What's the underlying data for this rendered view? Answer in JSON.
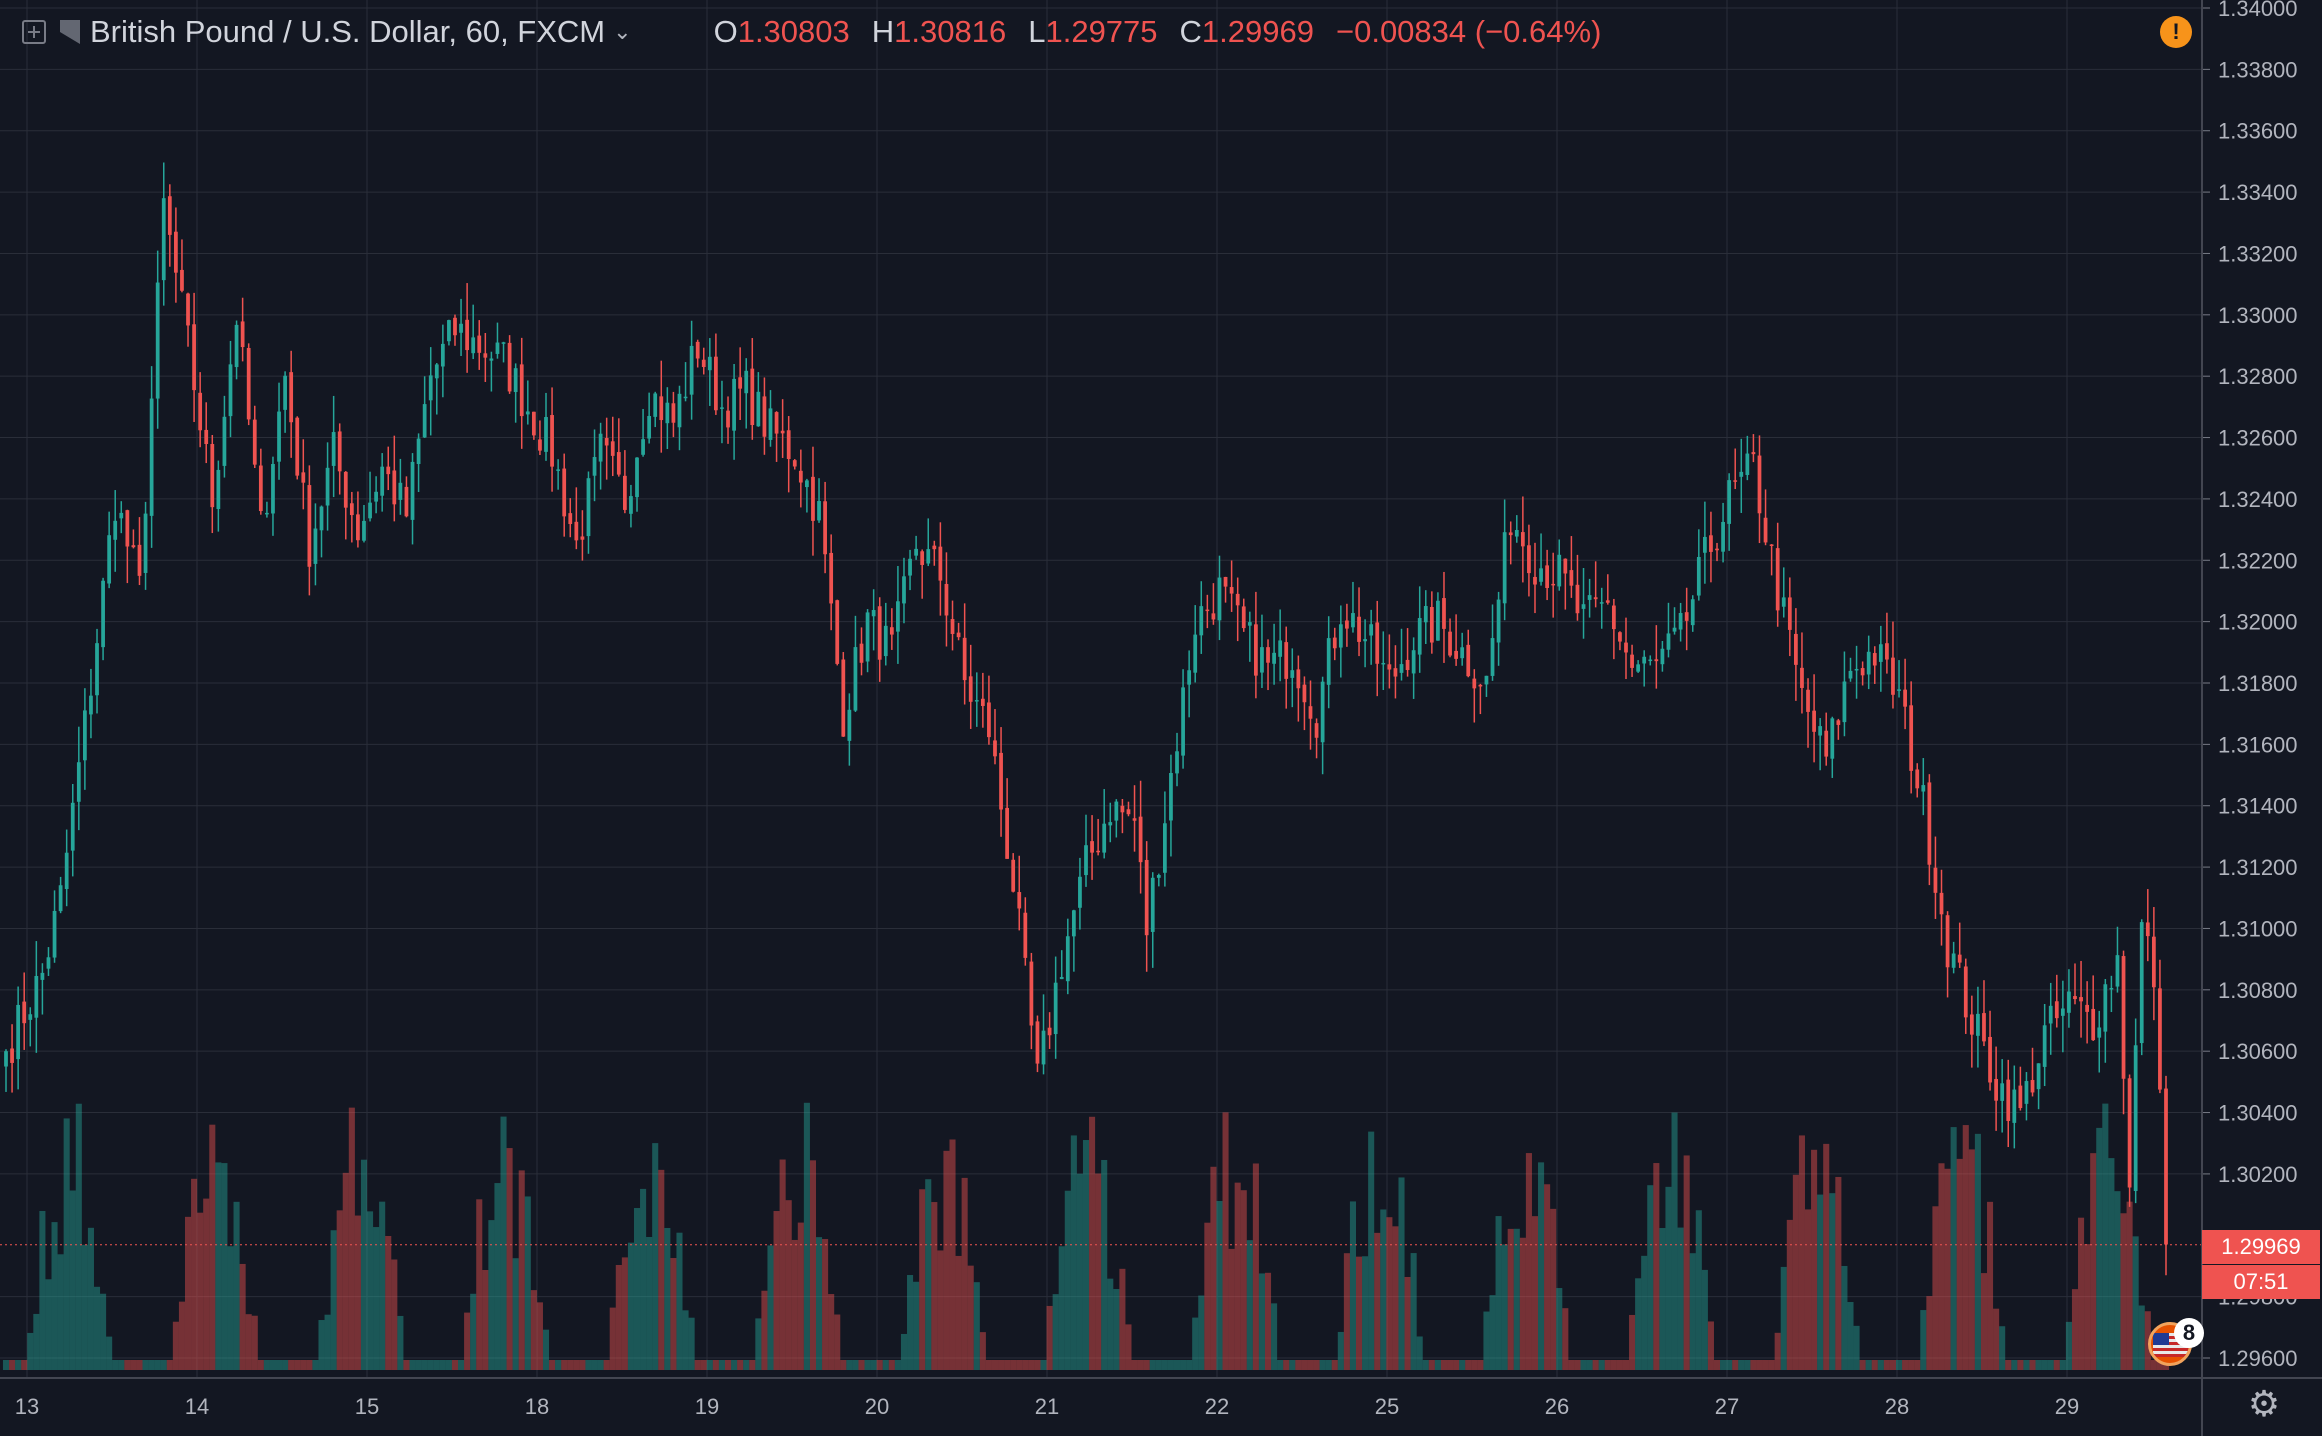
{
  "header": {
    "symbol": "British Pound / U.S. Dollar, 60, FXCM",
    "o_label": "O",
    "o_value": "1.30803",
    "h_label": "H",
    "h_value": "1.30816",
    "l_label": "L",
    "l_value": "1.29775",
    "c_label": "C",
    "c_value": "1.29969",
    "change": "−0.00834 (−0.64%)"
  },
  "alert_icon_text": "!",
  "price_label": "1.29969",
  "countdown": "07:51",
  "events_badge": "8",
  "colors": {
    "up": "#26a69a",
    "down": "#ef5350",
    "background": "#131722",
    "grid": "#2a2e39",
    "text": "#b2b5be"
  },
  "icons": [
    "add-icon",
    "flag-icon",
    "chevron-down-icon",
    "alert-icon",
    "us-flag-icon",
    "gear-icon"
  ],
  "chart_data": {
    "type": "candlestick",
    "title": "British Pound / U.S. Dollar, 60, FXCM",
    "xlabel": "",
    "ylabel": "",
    "ylim": [
      1.2955,
      1.34
    ],
    "y_ticks": [
      "1.34000",
      "1.33800",
      "1.33600",
      "1.33400",
      "1.33200",
      "1.33000",
      "1.32800",
      "1.32600",
      "1.32400",
      "1.32200",
      "1.32000",
      "1.31800",
      "1.31600",
      "1.31400",
      "1.31200",
      "1.31000",
      "1.30800",
      "1.30600",
      "1.30400",
      "1.30200",
      "1.29800",
      "1.29600"
    ],
    "x_ticks": [
      "13",
      "14",
      "15",
      "18",
      "19",
      "20",
      "21",
      "22",
      "25",
      "26",
      "27",
      "28",
      "29"
    ],
    "grid": true,
    "last_price": 1.29969,
    "anchors": [
      [
        0,
        1.306
      ],
      [
        6,
        1.3085
      ],
      [
        9,
        1.311
      ],
      [
        14,
        1.318
      ],
      [
        18,
        1.324
      ],
      [
        22,
        1.321
      ],
      [
        26,
        1.3335
      ],
      [
        30,
        1.329
      ],
      [
        34,
        1.324
      ],
      [
        38,
        1.33
      ],
      [
        42,
        1.323
      ],
      [
        46,
        1.328
      ],
      [
        50,
        1.3225
      ],
      [
        54,
        1.3255
      ],
      [
        58,
        1.323
      ],
      [
        62,
        1.325
      ],
      [
        66,
        1.3235
      ],
      [
        70,
        1.328
      ],
      [
        74,
        1.3295
      ],
      [
        78,
        1.329
      ],
      [
        82,
        1.3285
      ],
      [
        86,
        1.327
      ],
      [
        90,
        1.3255
      ],
      [
        94,
        1.3225
      ],
      [
        98,
        1.3255
      ],
      [
        102,
        1.324
      ],
      [
        106,
        1.3275
      ],
      [
        110,
        1.3265
      ],
      [
        114,
        1.329
      ],
      [
        118,
        1.327
      ],
      [
        122,
        1.3275
      ],
      [
        126,
        1.3262
      ],
      [
        130,
        1.3255
      ],
      [
        134,
        1.3235
      ],
      [
        138,
        1.317
      ],
      [
        142,
        1.32
      ],
      [
        146,
        1.319
      ],
      [
        150,
        1.3225
      ],
      [
        154,
        1.3215
      ],
      [
        158,
        1.318
      ],
      [
        162,
        1.3165
      ],
      [
        166,
        1.3115
      ],
      [
        170,
        1.305
      ],
      [
        174,
        1.309
      ],
      [
        178,
        1.312
      ],
      [
        182,
        1.314
      ],
      [
        186,
        1.3135
      ],
      [
        188,
        1.31
      ],
      [
        192,
        1.315
      ],
      [
        196,
        1.32
      ],
      [
        200,
        1.321
      ],
      [
        204,
        1.3195
      ],
      [
        208,
        1.3185
      ],
      [
        212,
        1.319
      ],
      [
        216,
        1.317
      ],
      [
        220,
        1.3205
      ],
      [
        224,
        1.3195
      ],
      [
        228,
        1.318
      ],
      [
        232,
        1.3195
      ],
      [
        236,
        1.32
      ],
      [
        240,
        1.319
      ],
      [
        244,
        1.318
      ],
      [
        248,
        1.3235
      ],
      [
        252,
        1.322
      ],
      [
        256,
        1.3215
      ],
      [
        260,
        1.32
      ],
      [
        264,
        1.3205
      ],
      [
        268,
        1.3185
      ],
      [
        272,
        1.3185
      ],
      [
        276,
        1.3195
      ],
      [
        280,
        1.322
      ],
      [
        284,
        1.324
      ],
      [
        288,
        1.325
      ],
      [
        292,
        1.321
      ],
      [
        296,
        1.3175
      ],
      [
        300,
        1.3155
      ],
      [
        304,
        1.3185
      ],
      [
        308,
        1.319
      ],
      [
        312,
        1.3175
      ],
      [
        316,
        1.314
      ],
      [
        320,
        1.3095
      ],
      [
        324,
        1.307
      ],
      [
        328,
        1.305
      ],
      [
        332,
        1.304
      ],
      [
        336,
        1.3065
      ],
      [
        340,
        1.3075
      ],
      [
        344,
        1.307
      ],
      [
        348,
        1.309
      ],
      [
        350,
        1.302
      ],
      [
        352,
        1.31
      ],
      [
        354,
        1.3085
      ],
      [
        356,
        1.2997
      ]
    ],
    "volume_hint": "volume bars at bottom, colored by candle direction"
  }
}
